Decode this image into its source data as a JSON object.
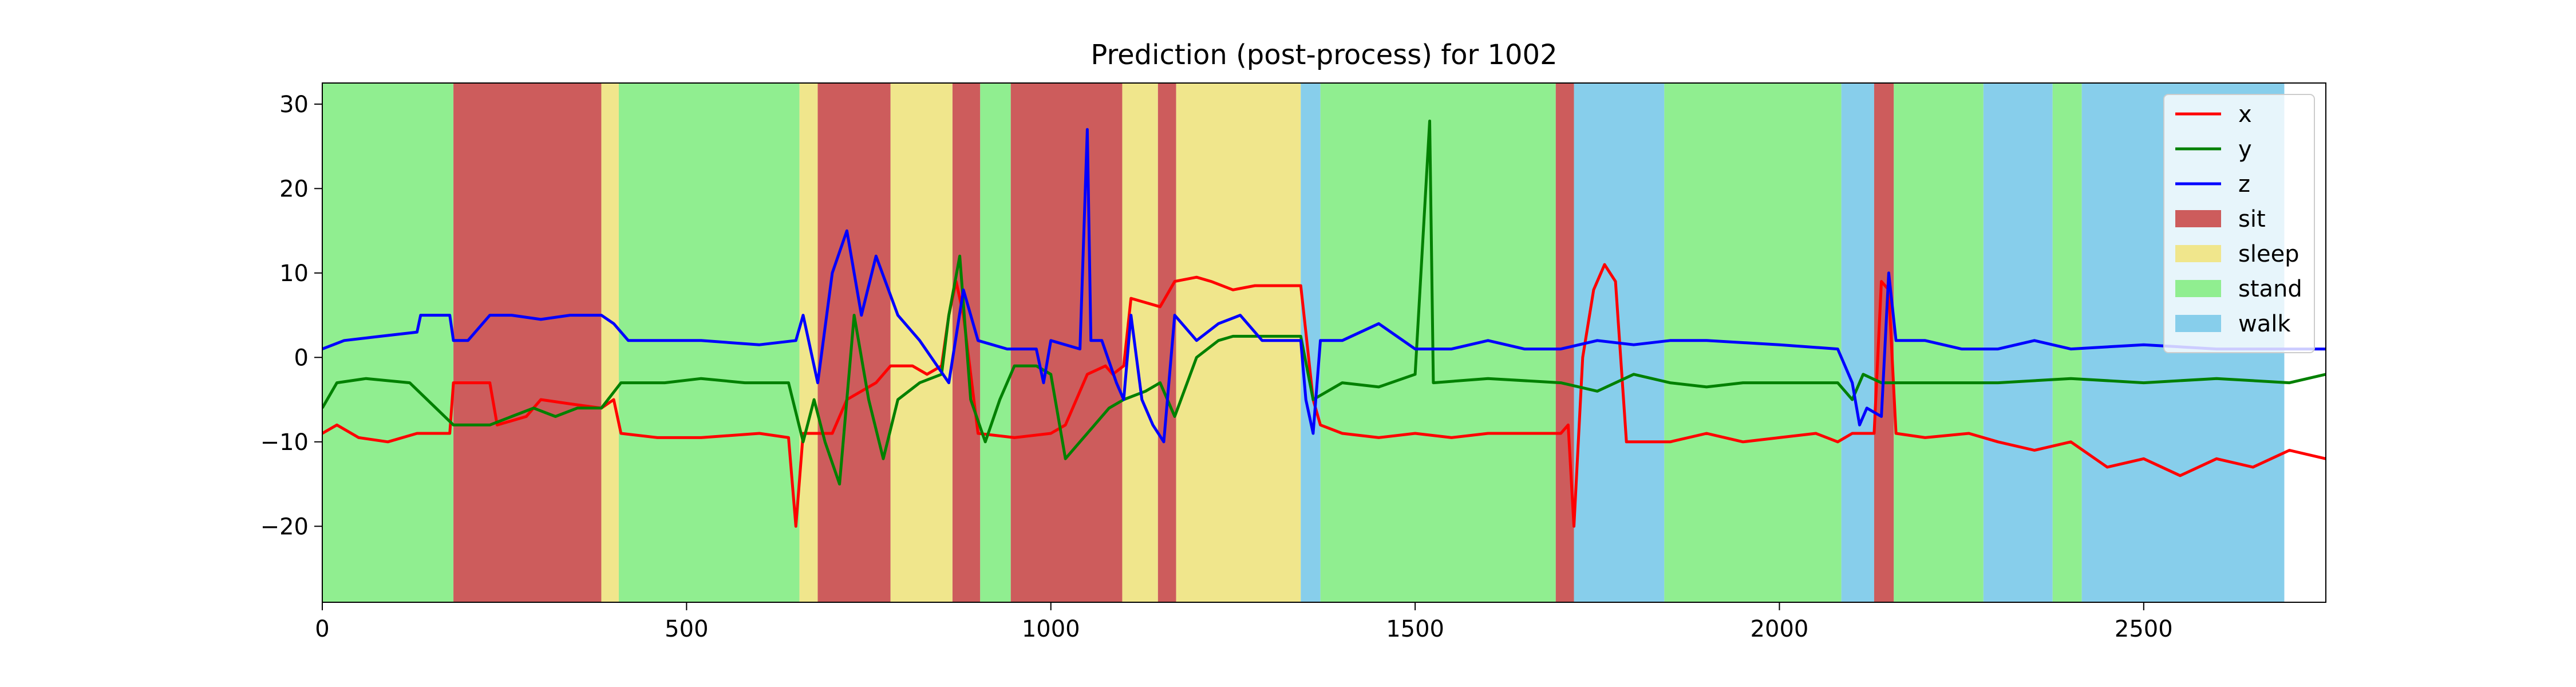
{
  "chart_data": {
    "type": "line",
    "title": "Prediction (post-process) for 1002",
    "xlabel": "",
    "ylabel": "",
    "xlim": [
      0,
      2750
    ],
    "ylim": [
      -29,
      32.5
    ],
    "xticks": [
      0,
      500,
      1000,
      1500,
      2000,
      2500
    ],
    "yticks": [
      -20,
      -10,
      0,
      10,
      20,
      30
    ],
    "ytick_labels": [
      "−20",
      "−10",
      "0",
      "10",
      "20",
      "30"
    ],
    "legend_position": "top-right",
    "legend": [
      "x",
      "y",
      "z",
      "sit",
      "sleep",
      "stand",
      "walk"
    ],
    "class_colors": {
      "sit": "#cd5c5c",
      "sleep": "#f0e68c",
      "stand": "#90ee90",
      "walk": "#87ceeb"
    },
    "segments": [
      {
        "start": 0,
        "end": 180,
        "label": "stand"
      },
      {
        "start": 180,
        "end": 383,
        "label": "sit"
      },
      {
        "start": 383,
        "end": 407,
        "label": "sleep"
      },
      {
        "start": 407,
        "end": 655,
        "label": "stand"
      },
      {
        "start": 655,
        "end": 680,
        "label": "sleep"
      },
      {
        "start": 680,
        "end": 780,
        "label": "sit"
      },
      {
        "start": 780,
        "end": 865,
        "label": "sleep"
      },
      {
        "start": 865,
        "end": 903,
        "label": "sit"
      },
      {
        "start": 903,
        "end": 945,
        "label": "stand"
      },
      {
        "start": 945,
        "end": 1098,
        "label": "sit"
      },
      {
        "start": 1098,
        "end": 1147,
        "label": "sleep"
      },
      {
        "start": 1147,
        "end": 1172,
        "label": "sit"
      },
      {
        "start": 1172,
        "end": 1343,
        "label": "sleep"
      },
      {
        "start": 1343,
        "end": 1370,
        "label": "walk"
      },
      {
        "start": 1370,
        "end": 1693,
        "label": "stand"
      },
      {
        "start": 1693,
        "end": 1718,
        "label": "sit"
      },
      {
        "start": 1718,
        "end": 1842,
        "label": "walk"
      },
      {
        "start": 1842,
        "end": 2085,
        "label": "stand"
      },
      {
        "start": 2085,
        "end": 2130,
        "label": "walk"
      },
      {
        "start": 2130,
        "end": 2157,
        "label": "sit"
      },
      {
        "start": 2157,
        "end": 2280,
        "label": "stand"
      },
      {
        "start": 2280,
        "end": 2375,
        "label": "walk"
      },
      {
        "start": 2375,
        "end": 2415,
        "label": "stand"
      },
      {
        "start": 2415,
        "end": 2693,
        "label": "walk"
      }
    ],
    "series": [
      {
        "name": "x",
        "color": "#ff0000",
        "points": [
          [
            0,
            -9
          ],
          [
            20,
            -8
          ],
          [
            50,
            -9.5
          ],
          [
            90,
            -10
          ],
          [
            130,
            -9
          ],
          [
            175,
            -9
          ],
          [
            180,
            -3
          ],
          [
            230,
            -3
          ],
          [
            240,
            -8
          ],
          [
            280,
            -7
          ],
          [
            300,
            -5
          ],
          [
            340,
            -5.5
          ],
          [
            383,
            -6
          ],
          [
            400,
            -5
          ],
          [
            410,
            -9
          ],
          [
            460,
            -9.5
          ],
          [
            520,
            -9.5
          ],
          [
            600,
            -9
          ],
          [
            640,
            -9.5
          ],
          [
            650,
            -20
          ],
          [
            660,
            -9
          ],
          [
            700,
            -9
          ],
          [
            720,
            -5
          ],
          [
            760,
            -3
          ],
          [
            780,
            -1
          ],
          [
            810,
            -1
          ],
          [
            830,
            -2
          ],
          [
            850,
            -1
          ],
          [
            860,
            5
          ],
          [
            870,
            9
          ],
          [
            880,
            5
          ],
          [
            900,
            -9
          ],
          [
            950,
            -9.5
          ],
          [
            1000,
            -9
          ],
          [
            1020,
            -8
          ],
          [
            1050,
            -2
          ],
          [
            1075,
            -1
          ],
          [
            1085,
            -2
          ],
          [
            1100,
            -1
          ],
          [
            1110,
            7
          ],
          [
            1150,
            6
          ],
          [
            1170,
            9
          ],
          [
            1200,
            9.5
          ],
          [
            1220,
            9
          ],
          [
            1250,
            8
          ],
          [
            1280,
            8.5
          ],
          [
            1343,
            8.5
          ],
          [
            1350,
            3
          ],
          [
            1360,
            -5
          ],
          [
            1370,
            -8
          ],
          [
            1400,
            -9
          ],
          [
            1450,
            -9.5
          ],
          [
            1500,
            -9
          ],
          [
            1550,
            -9.5
          ],
          [
            1600,
            -9
          ],
          [
            1650,
            -9
          ],
          [
            1700,
            -9
          ],
          [
            1710,
            -8
          ],
          [
            1718,
            -20
          ],
          [
            1730,
            0
          ],
          [
            1745,
            8
          ],
          [
            1760,
            11
          ],
          [
            1775,
            9
          ],
          [
            1790,
            -10
          ],
          [
            1850,
            -10
          ],
          [
            1900,
            -9
          ],
          [
            1950,
            -10
          ],
          [
            2000,
            -9.5
          ],
          [
            2050,
            -9
          ],
          [
            2080,
            -10
          ],
          [
            2100,
            -9
          ],
          [
            2130,
            -9
          ],
          [
            2140,
            9
          ],
          [
            2150,
            8
          ],
          [
            2160,
            -9
          ],
          [
            2200,
            -9.5
          ],
          [
            2260,
            -9
          ],
          [
            2300,
            -10
          ],
          [
            2350,
            -11
          ],
          [
            2400,
            -10
          ],
          [
            2450,
            -13
          ],
          [
            2500,
            -12
          ],
          [
            2550,
            -14
          ],
          [
            2600,
            -12
          ],
          [
            2650,
            -13
          ],
          [
            2700,
            -11
          ],
          [
            2750,
            -12
          ]
        ]
      },
      {
        "name": "y",
        "color": "#008000",
        "points": [
          [
            0,
            -6
          ],
          [
            20,
            -3
          ],
          [
            60,
            -2.5
          ],
          [
            120,
            -3
          ],
          [
            180,
            -8
          ],
          [
            230,
            -8
          ],
          [
            260,
            -7
          ],
          [
            290,
            -6
          ],
          [
            320,
            -7
          ],
          [
            350,
            -6
          ],
          [
            383,
            -6
          ],
          [
            410,
            -3
          ],
          [
            470,
            -3
          ],
          [
            520,
            -2.5
          ],
          [
            580,
            -3
          ],
          [
            640,
            -3
          ],
          [
            660,
            -10
          ],
          [
            675,
            -5
          ],
          [
            690,
            -10
          ],
          [
            710,
            -15
          ],
          [
            730,
            5
          ],
          [
            750,
            -5
          ],
          [
            770,
            -12
          ],
          [
            790,
            -5
          ],
          [
            820,
            -3
          ],
          [
            850,
            -2
          ],
          [
            860,
            5
          ],
          [
            875,
            12
          ],
          [
            890,
            -5
          ],
          [
            910,
            -10
          ],
          [
            930,
            -5
          ],
          [
            950,
            -1
          ],
          [
            980,
            -1
          ],
          [
            1000,
            -2
          ],
          [
            1020,
            -12
          ],
          [
            1040,
            -10
          ],
          [
            1060,
            -8
          ],
          [
            1080,
            -6
          ],
          [
            1100,
            -5
          ],
          [
            1130,
            -4
          ],
          [
            1150,
            -3
          ],
          [
            1170,
            -7
          ],
          [
            1200,
            0
          ],
          [
            1230,
            2
          ],
          [
            1250,
            2.5
          ],
          [
            1343,
            2.5
          ],
          [
            1360,
            -5
          ],
          [
            1400,
            -3
          ],
          [
            1450,
            -3.5
          ],
          [
            1500,
            -2
          ],
          [
            1520,
            28
          ],
          [
            1525,
            -3
          ],
          [
            1600,
            -2.5
          ],
          [
            1700,
            -3
          ],
          [
            1750,
            -4
          ],
          [
            1800,
            -2
          ],
          [
            1850,
            -3
          ],
          [
            1900,
            -3.5
          ],
          [
            1950,
            -3
          ],
          [
            2000,
            -3
          ],
          [
            2080,
            -3
          ],
          [
            2100,
            -5
          ],
          [
            2115,
            -2
          ],
          [
            2140,
            -3
          ],
          [
            2200,
            -3
          ],
          [
            2300,
            -3
          ],
          [
            2400,
            -2.5
          ],
          [
            2500,
            -3
          ],
          [
            2600,
            -2.5
          ],
          [
            2700,
            -3
          ],
          [
            2750,
            -2
          ]
        ]
      },
      {
        "name": "z",
        "color": "#0000ff",
        "points": [
          [
            0,
            1
          ],
          [
            30,
            2
          ],
          [
            80,
            2.5
          ],
          [
            130,
            3
          ],
          [
            135,
            5
          ],
          [
            175,
            5
          ],
          [
            180,
            2
          ],
          [
            200,
            2
          ],
          [
            230,
            5
          ],
          [
            260,
            5
          ],
          [
            300,
            4.5
          ],
          [
            340,
            5
          ],
          [
            383,
            5
          ],
          [
            400,
            4
          ],
          [
            420,
            2
          ],
          [
            470,
            2
          ],
          [
            520,
            2
          ],
          [
            600,
            1.5
          ],
          [
            650,
            2
          ],
          [
            660,
            5
          ],
          [
            680,
            -3
          ],
          [
            700,
            10
          ],
          [
            720,
            15
          ],
          [
            740,
            5
          ],
          [
            760,
            12
          ],
          [
            790,
            5
          ],
          [
            820,
            2
          ],
          [
            860,
            -3
          ],
          [
            880,
            8
          ],
          [
            900,
            2
          ],
          [
            940,
            1
          ],
          [
            980,
            1
          ],
          [
            990,
            -3
          ],
          [
            1000,
            2
          ],
          [
            1040,
            1
          ],
          [
            1050,
            27
          ],
          [
            1055,
            2
          ],
          [
            1070,
            2
          ],
          [
            1090,
            -3
          ],
          [
            1100,
            -5
          ],
          [
            1110,
            5
          ],
          [
            1125,
            -5
          ],
          [
            1140,
            -8
          ],
          [
            1155,
            -10
          ],
          [
            1170,
            5
          ],
          [
            1200,
            2
          ],
          [
            1230,
            4
          ],
          [
            1260,
            5
          ],
          [
            1290,
            2
          ],
          [
            1343,
            2
          ],
          [
            1350,
            -5
          ],
          [
            1360,
            -9
          ],
          [
            1370,
            2
          ],
          [
            1400,
            2
          ],
          [
            1450,
            4
          ],
          [
            1500,
            1
          ],
          [
            1550,
            1
          ],
          [
            1600,
            2
          ],
          [
            1650,
            1
          ],
          [
            1700,
            1
          ],
          [
            1750,
            2
          ],
          [
            1800,
            1.5
          ],
          [
            1850,
            2
          ],
          [
            1900,
            2
          ],
          [
            2000,
            1.5
          ],
          [
            2080,
            1
          ],
          [
            2100,
            -3
          ],
          [
            2110,
            -8
          ],
          [
            2120,
            -6
          ],
          [
            2140,
            -7
          ],
          [
            2150,
            10
          ],
          [
            2160,
            2
          ],
          [
            2200,
            2
          ],
          [
            2250,
            1
          ],
          [
            2300,
            1
          ],
          [
            2350,
            2
          ],
          [
            2400,
            1
          ],
          [
            2500,
            1.5
          ],
          [
            2600,
            1
          ],
          [
            2700,
            1
          ],
          [
            2750,
            1
          ]
        ]
      }
    ]
  }
}
